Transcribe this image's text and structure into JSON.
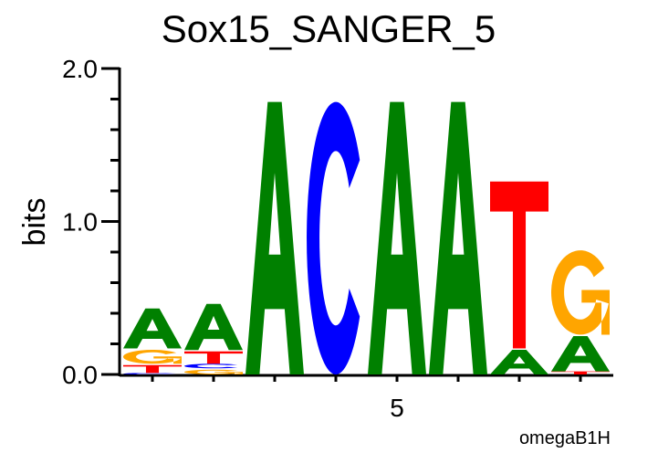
{
  "chart_data": {
    "type": "sequence-logo",
    "title": "Sox15_SANGER_5",
    "ylabel": "bits",
    "ylim": [
      0,
      2.0
    ],
    "yticks": [
      "0.0",
      "1.0",
      "2.0"
    ],
    "xtick_labels": [
      {
        "position": 5,
        "label": "5"
      }
    ],
    "footer": "omegaB1H",
    "colors": {
      "A": "#008000",
      "C": "#0000ff",
      "G": "#ffa500",
      "T": "#ff0000"
    },
    "positions": [
      {
        "pos": 1,
        "stack": [
          {
            "letter": "C",
            "bits": 0.01
          },
          {
            "letter": "T",
            "bits": 0.06
          },
          {
            "letter": "G",
            "bits": 0.1
          },
          {
            "letter": "A",
            "bits": 0.27
          }
        ]
      },
      {
        "pos": 2,
        "stack": [
          {
            "letter": "G",
            "bits": 0.04
          },
          {
            "letter": "C",
            "bits": 0.03
          },
          {
            "letter": "T",
            "bits": 0.09
          },
          {
            "letter": "A",
            "bits": 0.31
          }
        ]
      },
      {
        "pos": 3,
        "stack": [
          {
            "letter": "A",
            "bits": 1.79
          }
        ]
      },
      {
        "pos": 4,
        "stack": [
          {
            "letter": "C",
            "bits": 1.79
          }
        ]
      },
      {
        "pos": 5,
        "stack": [
          {
            "letter": "A",
            "bits": 1.79
          }
        ]
      },
      {
        "pos": 6,
        "stack": [
          {
            "letter": "A",
            "bits": 1.79
          }
        ]
      },
      {
        "pos": 7,
        "stack": [
          {
            "letter": "A",
            "bits": 0.17
          },
          {
            "letter": "T",
            "bits": 1.1
          }
        ]
      },
      {
        "pos": 8,
        "stack": [
          {
            "letter": "T",
            "bits": 0.02
          },
          {
            "letter": "A",
            "bits": 0.24
          },
          {
            "letter": "G",
            "bits": 0.56
          }
        ]
      }
    ]
  }
}
